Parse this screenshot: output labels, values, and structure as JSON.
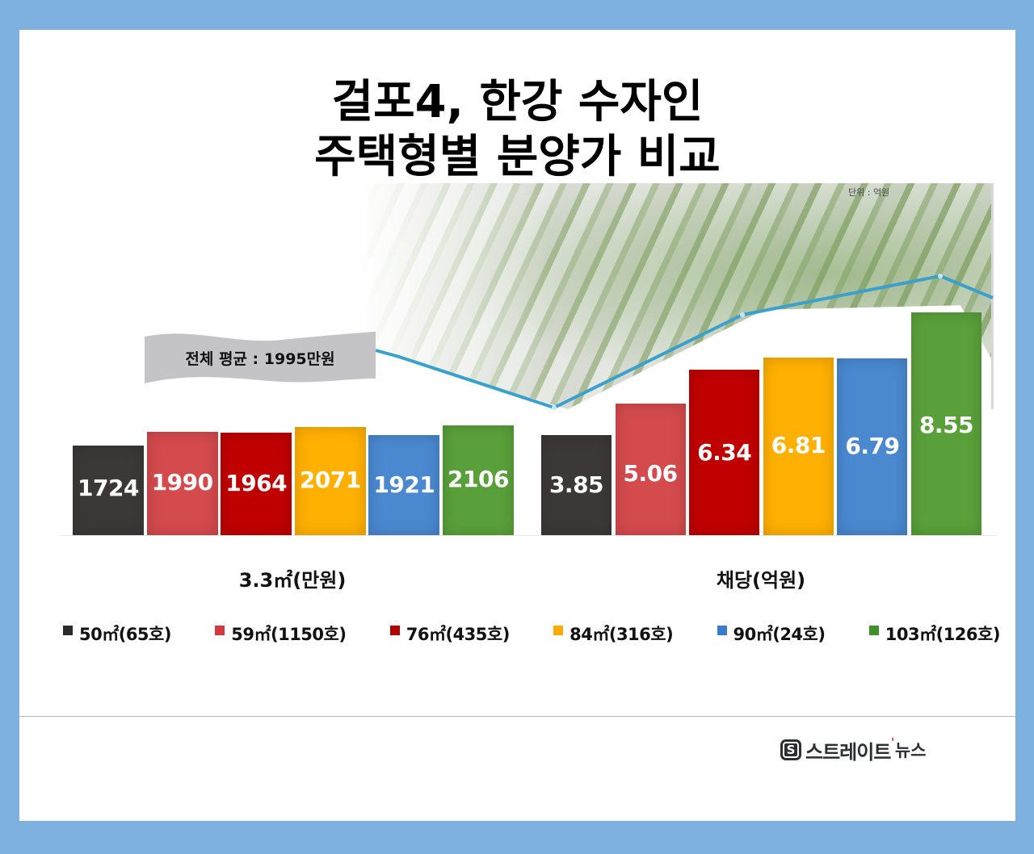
{
  "title": {
    "line1": "걸포4, 한강 수자인",
    "line2": "주택형별 분양가 비교"
  },
  "unit_note": "단위 : 억원",
  "average_banner": "전체 평균 : 1995만원",
  "colors": {
    "background": "#7eb0e0",
    "card": "#ffffff",
    "line": "#3aa0cc",
    "ribbon": "#c4c4c6"
  },
  "chart_data": [
    {
      "type": "bar",
      "title": "3.3㎡(만원)",
      "xlabel": "3.3㎡(만원)",
      "ylabel": "",
      "categories": [
        "50㎡(65호)",
        "59㎡(1150호)",
        "76㎡(435호)",
        "84㎡(316호)",
        "90㎡(24호)",
        "103㎡(126호)"
      ],
      "values": [
        1724,
        1990,
        1964,
        2071,
        1921,
        2106
      ],
      "labels": [
        "1724",
        "1990",
        "1964",
        "2071",
        "1921",
        "2106"
      ],
      "colors": [
        "#3c3838",
        "#d44a4d",
        "#c00000",
        "#ffb000",
        "#4a88d0",
        "#5aa03a"
      ],
      "annotation": "전체 평균 : 1995만원",
      "grid": false
    },
    {
      "type": "bar",
      "title": "채당(억원)",
      "xlabel": "채당(억원)",
      "ylabel": "",
      "categories": [
        "50㎡(65호)",
        "59㎡(1150호)",
        "76㎡(435호)",
        "84㎡(316호)",
        "90㎡(24호)",
        "103㎡(126호)"
      ],
      "values": [
        3.85,
        5.06,
        6.34,
        6.81,
        6.79,
        8.55
      ],
      "labels": [
        "3.85",
        "5.06",
        "6.34",
        "6.81",
        "6.79",
        "8.55"
      ],
      "colors": [
        "#3c3838",
        "#d44a4d",
        "#c00000",
        "#ffb000",
        "#4a88d0",
        "#5aa03a"
      ],
      "annotation": "단위 : 억원",
      "grid": false
    }
  ],
  "group_labels": [
    "3.3㎡(만원)",
    "채당(억원)"
  ],
  "legend": [
    {
      "label": "50㎡(65호)",
      "color": "#2e2a2a"
    },
    {
      "label": "59㎡(1150호)",
      "color": "#d03a3e"
    },
    {
      "label": "76㎡(435호)",
      "color": "#b00000"
    },
    {
      "label": "84㎡(316호)",
      "color": "#ffaa00"
    },
    {
      "label": "90㎡(24호)",
      "color": "#3a7ccc"
    },
    {
      "label": "103㎡(126호)",
      "color": "#3f8f2a"
    }
  ],
  "logo": {
    "mark": "S",
    "name": "스트레이트",
    "accent": "'",
    "sub": "뉴스"
  }
}
